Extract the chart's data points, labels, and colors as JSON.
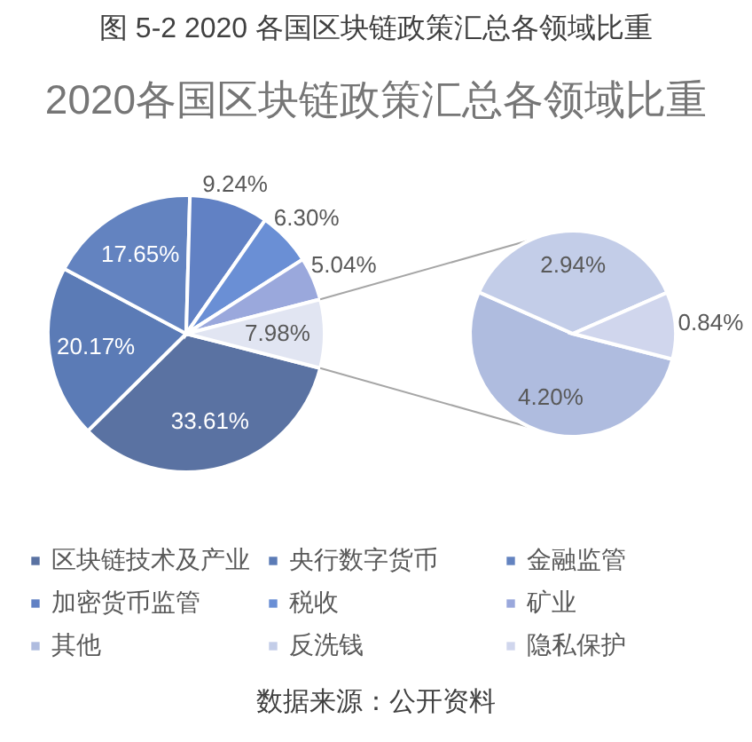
{
  "chart_data": [
    {
      "type": "pie",
      "title": "图 5-2 2020 各国区块链政策汇总各领域比重",
      "subtitle": "2020各国区块链政策汇总各领域比重",
      "categories": [
        "区块链技术及产业",
        "央行数字货币",
        "金融监管",
        "加密货币监管",
        "税收",
        "矿业",
        null
      ],
      "values": [
        33.61,
        20.17,
        17.65,
        9.24,
        6.3,
        5.04,
        7.98
      ],
      "colors": [
        "#5a72a2",
        "#5b7bb6",
        "#6383c0",
        "#6181c4",
        "#6a8fd5",
        "#9aa8dc",
        "#e1e5f2"
      ],
      "value_labels": [
        "33.61%",
        "20.17%",
        "17.65%",
        "9.24%",
        "6.30%",
        "5.04%",
        "7.98%"
      ],
      "legend": "bottom",
      "annotations": [
        "数据来源：公开资料"
      ]
    },
    {
      "type": "pie",
      "categories": [
        "其他",
        "反洗钱",
        "隐私保护"
      ],
      "values": [
        4.2,
        2.94,
        0.84
      ],
      "colors": [
        "#afbcdf",
        "#c3cde8",
        "#d0d6ed"
      ],
      "value_labels": [
        "4.20%",
        "2.94%",
        "0.84%"
      ],
      "legend": "bottom"
    }
  ]
}
